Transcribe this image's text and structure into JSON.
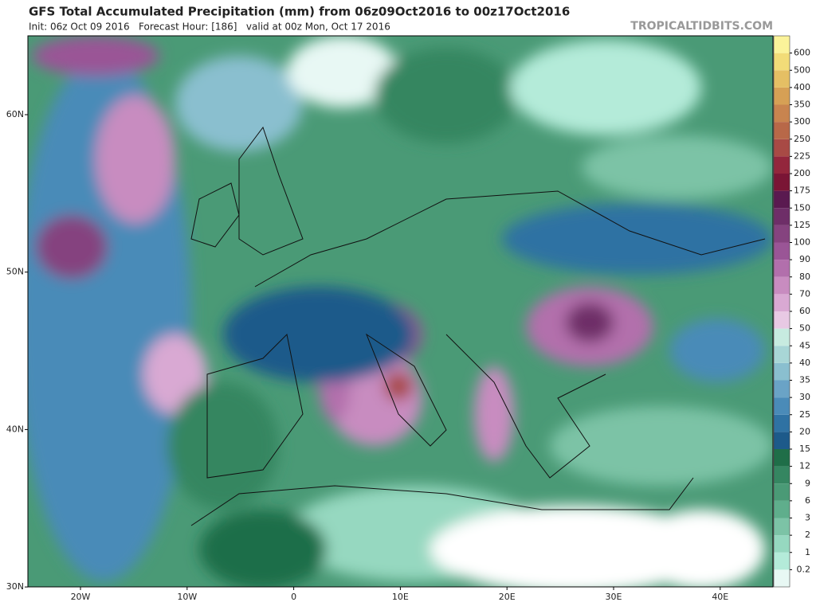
{
  "header": {
    "title": "GFS Total Accumulated Precipitation (mm) from 06z09Oct2016 to 00z17Oct2016",
    "subtitle": "Init: 06z Oct 09 2016   Forecast Hour: [186]   valid at 00z Mon, Oct 17 2016",
    "credit": "TROPICALTIDBITS.COM"
  },
  "map": {
    "lat_labels": [
      "60N",
      "50N",
      "40N",
      "30N"
    ],
    "lon_labels": [
      "20W",
      "10W",
      "0",
      "10E",
      "20E",
      "30E",
      "40E"
    ]
  },
  "legend": {
    "levels": [
      0.2,
      1,
      2,
      3,
      6,
      9,
      12,
      15,
      20,
      25,
      30,
      35,
      40,
      45,
      50,
      60,
      70,
      80,
      90,
      100,
      125,
      150,
      175,
      200,
      225,
      250,
      300,
      350,
      400,
      500,
      600
    ],
    "colors": [
      "#e8f8f4",
      "#b4ebd9",
      "#96d8c0",
      "#7cc3a6",
      "#5fae8c",
      "#4a9a76",
      "#358661",
      "#1f6e48",
      "#1d5a8a",
      "#2f72a3",
      "#4a8bb8",
      "#6aa3c6",
      "#8abfcf",
      "#a8d6d6",
      "#c7ebe0",
      "#e8c9e4",
      "#d9a9d3",
      "#c88cc0",
      "#b26fac",
      "#9a5596",
      "#85437f",
      "#6e2e68",
      "#5a1a50",
      "#7a1535",
      "#93263c",
      "#a84a45",
      "#b86848",
      "#c8844f",
      "#d6a055",
      "#e5bf64",
      "#f2dc78",
      "#fbf39a"
    ]
  }
}
